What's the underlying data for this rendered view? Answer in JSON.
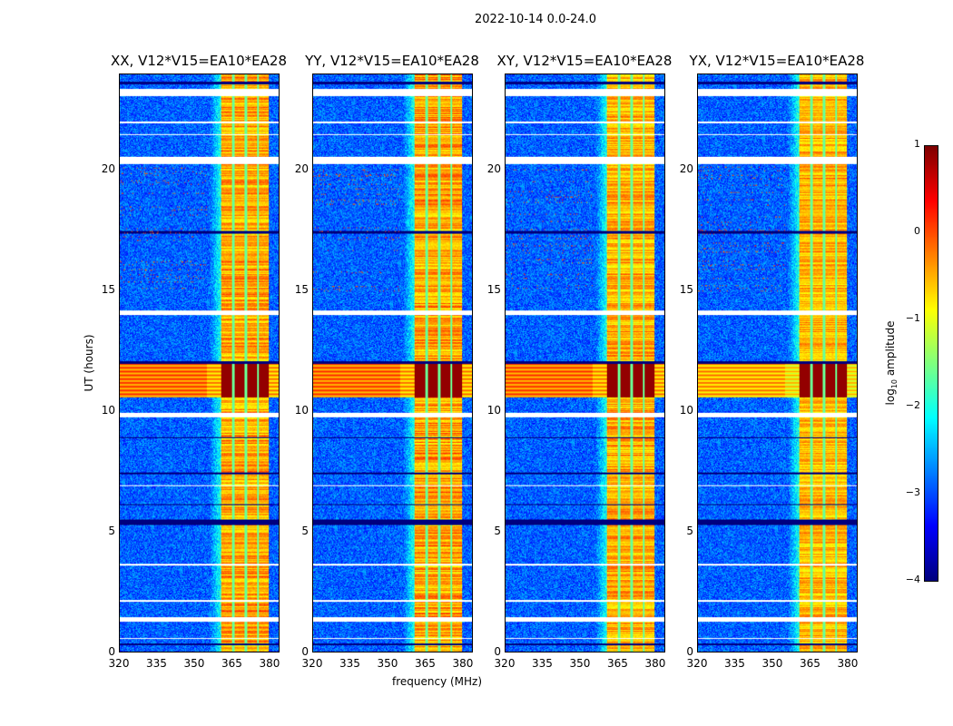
{
  "suptitle": "2022-10-14 0.0-24.0",
  "chart_data": {
    "type": "heatmap",
    "xlabel": "frequency (MHz)",
    "ylabel": "UT (hours)",
    "xlim": [
      320,
      384
    ],
    "ylim": [
      0,
      24
    ],
    "xticks": [
      "320",
      "335",
      "350",
      "365",
      "380"
    ],
    "yticks": [
      "0",
      "5",
      "10",
      "15",
      "20"
    ],
    "colorbar": {
      "label_main": "log",
      "label_sub": "10",
      "label_rest": " amplitude",
      "range": [
        -4,
        1
      ],
      "ticks": [
        "1",
        "0",
        "−1",
        "−2",
        "−3",
        "−4"
      ],
      "colormap": "jet"
    },
    "panels": [
      {
        "title": "XX, V12*V15=EA10*EA28",
        "rfi_scale": 1.0
      },
      {
        "title": "YY, V12*V15=EA10*EA28",
        "rfi_scale": 1.05
      },
      {
        "title": "XY, V12*V15=EA10*EA28",
        "rfi_scale": 0.95
      },
      {
        "title": "YX, V12*V15=EA10*EA28",
        "rfi_scale": 0.85
      }
    ],
    "background_log_amp": -2.9,
    "rfi_band_mhz": [
      360.5,
      380
    ],
    "rfi_channel_gaps_mhz": [
      365.5,
      370.5,
      375.5
    ],
    "strong_rfi_hours": [
      10.6,
      12.0
    ],
    "flagged_hours_white": [
      [
        23.1,
        23.4
      ],
      [
        20.3,
        20.6
      ],
      [
        14.0,
        14.2
      ],
      [
        9.75,
        9.95
      ],
      [
        1.25,
        1.45
      ],
      [
        22.0,
        22.05
      ],
      [
        21.5,
        21.55
      ],
      [
        6.9,
        6.95
      ],
      [
        3.6,
        3.65
      ],
      [
        2.1,
        2.15
      ],
      [
        0.55,
        0.6
      ]
    ],
    "dropout_hours_black": [
      [
        23.6,
        23.7
      ],
      [
        17.4,
        17.5
      ],
      [
        12.0,
        12.1
      ],
      [
        8.9,
        8.95
      ],
      [
        7.4,
        7.45
      ],
      [
        6.1,
        6.15
      ],
      [
        5.3,
        5.5
      ],
      [
        0.3,
        0.35
      ]
    ]
  }
}
